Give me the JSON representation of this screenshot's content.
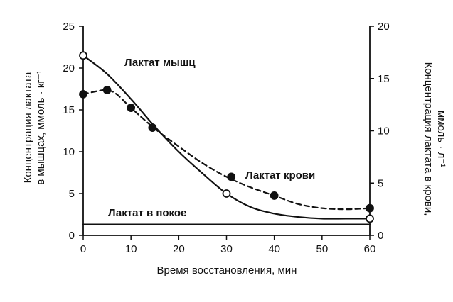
{
  "chart_data": {
    "type": "line",
    "x": {
      "label": "Время восстановления, мин",
      "range": [
        0,
        60
      ],
      "ticks": [
        0,
        10,
        20,
        30,
        40,
        50,
        60
      ]
    },
    "y_left": {
      "label_line1": "Концентрация лактата",
      "label_line2": "в мышцах, ммоль · кг⁻¹",
      "range": [
        0,
        25
      ],
      "ticks": [
        0,
        5,
        10,
        15,
        20,
        25
      ]
    },
    "y_right": {
      "label_line1": "Концентрация лактата в крови,",
      "label_line2": "ммоль · л⁻¹",
      "range": [
        0,
        20
      ],
      "ticks": [
        0,
        5,
        10,
        15,
        20
      ]
    },
    "series": [
      {
        "name": "Лактат мышц",
        "axis": "left",
        "style": "solid",
        "marker": "open-circle",
        "line": [
          [
            0,
            21.5
          ],
          [
            5,
            19.3
          ],
          [
            10,
            16.3
          ],
          [
            15,
            13.0
          ],
          [
            20,
            10.0
          ],
          [
            25,
            7.4
          ],
          [
            30,
            5.0
          ],
          [
            35,
            3.4
          ],
          [
            40,
            2.6
          ],
          [
            45,
            2.2
          ],
          [
            50,
            2.0
          ],
          [
            55,
            2.0
          ],
          [
            60,
            2.0
          ]
        ],
        "markers": [
          [
            0,
            21.5
          ],
          [
            30,
            5.0
          ],
          [
            60,
            2.0
          ]
        ]
      },
      {
        "name": "Лактат крови",
        "axis": "right",
        "style": "dashed",
        "marker": "filled-circle",
        "line": [
          [
            0,
            13.5
          ],
          [
            3,
            13.8
          ],
          [
            5,
            13.9
          ],
          [
            7,
            13.5
          ],
          [
            10,
            12.2
          ],
          [
            15,
            10.2
          ],
          [
            20,
            8.5
          ],
          [
            25,
            6.9
          ],
          [
            30,
            5.6
          ],
          [
            35,
            4.6
          ],
          [
            40,
            3.8
          ],
          [
            45,
            3.0
          ],
          [
            50,
            2.6
          ],
          [
            55,
            2.5
          ],
          [
            60,
            2.6
          ]
        ],
        "markers": [
          [
            0,
            13.5
          ],
          [
            5,
            13.9
          ],
          [
            10,
            12.2
          ],
          [
            14.5,
            10.3
          ],
          [
            31,
            5.6
          ],
          [
            40,
            3.8
          ],
          [
            60,
            2.6
          ]
        ]
      },
      {
        "name": "Лактат в покое",
        "axis": "left",
        "style": "solid",
        "marker": "none",
        "line": [
          [
            0,
            1.3
          ],
          [
            60,
            1.3
          ]
        ],
        "markers": []
      }
    ],
    "annotations": {
      "muscle": "Лактат мышц",
      "blood": "Лактат крови",
      "rest": "Лактат в покое"
    },
    "grid": false
  }
}
